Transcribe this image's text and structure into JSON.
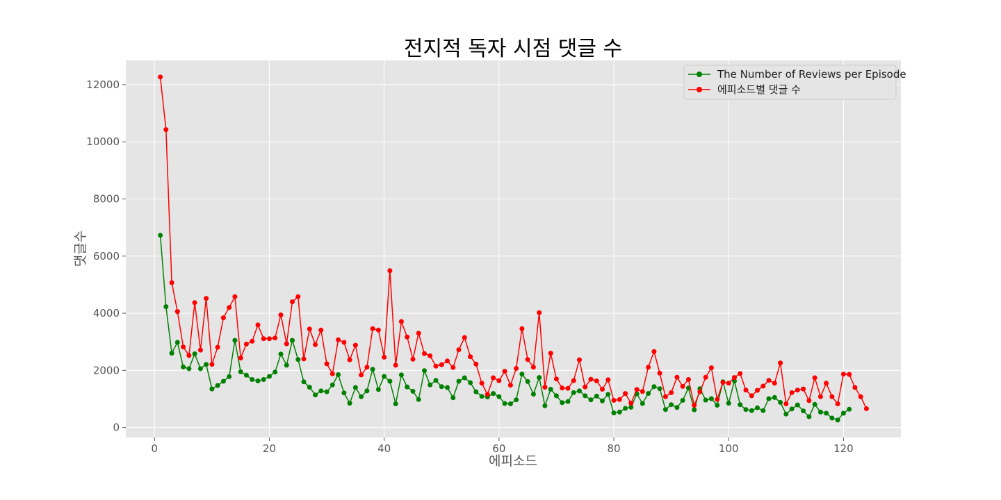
{
  "chart_data": {
    "type": "line",
    "title": "전지적 독자 시점 댓글 수",
    "xlabel": "에피소드",
    "ylabel": "댓글수",
    "xlim": [
      -5,
      130
    ],
    "ylim": [
      -350,
      12850
    ],
    "xticks": [
      0,
      20,
      40,
      60,
      80,
      100,
      120
    ],
    "yticks": [
      0,
      2000,
      4000,
      6000,
      8000,
      10000,
      12000
    ],
    "grid": true,
    "legend_position": "top-right",
    "colors": {
      "plot_bg": "#e5e5e5",
      "grid": "#ffffff"
    },
    "series": [
      {
        "name": "The Number of Reviews per Episode",
        "color": "#008000",
        "x": [
          1,
          2,
          3,
          4,
          5,
          6,
          7,
          8,
          9,
          10,
          11,
          12,
          13,
          14,
          15,
          16,
          17,
          18,
          19,
          20,
          21,
          22,
          23,
          24,
          25,
          26,
          27,
          28,
          29,
          30,
          31,
          32,
          33,
          34,
          35,
          36,
          37,
          38,
          39,
          40,
          41,
          42,
          43,
          44,
          45,
          46,
          47,
          48,
          49,
          50,
          51,
          52,
          53,
          54,
          55,
          56,
          57,
          58,
          59,
          60,
          61,
          62,
          63,
          64,
          65,
          66,
          67,
          68,
          69,
          70,
          71,
          72,
          73,
          74,
          75,
          76,
          77,
          78,
          79,
          80,
          81,
          82,
          83,
          84,
          85,
          86,
          87,
          88,
          89,
          90,
          91,
          92,
          93,
          94,
          95,
          96,
          97,
          98,
          99,
          100,
          101,
          102,
          103,
          104,
          105,
          106,
          107,
          108,
          109,
          110,
          111,
          112,
          113,
          114,
          115,
          116,
          117,
          118,
          119,
          120,
          121
        ],
        "values": [
          6730,
          4230,
          2600,
          2980,
          2120,
          2060,
          2580,
          2060,
          2210,
          1350,
          1470,
          1620,
          1780,
          3050,
          1950,
          1830,
          1680,
          1630,
          1680,
          1790,
          1940,
          2570,
          2180,
          3050,
          2380,
          1600,
          1410,
          1140,
          1280,
          1250,
          1490,
          1850,
          1210,
          850,
          1400,
          1080,
          1280,
          2040,
          1330,
          1790,
          1620,
          830,
          1840,
          1420,
          1270,
          980,
          1990,
          1490,
          1650,
          1430,
          1400,
          1040,
          1620,
          1740,
          1570,
          1250,
          1090,
          1070,
          1190,
          1080,
          840,
          830,
          970,
          1870,
          1610,
          1170,
          1750,
          760,
          1340,
          1110,
          870,
          910,
          1220,
          1280,
          1110,
          970,
          1100,
          930,
          1160,
          510,
          540,
          670,
          710,
          1180,
          840,
          1190,
          1430,
          1360,
          630,
          800,
          700,
          950,
          1380,
          620,
          1360,
          960,
          1010,
          780,
          1600,
          850,
          1630,
          800,
          630,
          590,
          690,
          590,
          1010,
          1050,
          880,
          470,
          650,
          790,
          580,
          380,
          810,
          540,
          500,
          330,
          260,
          500,
          640
        ]
      },
      {
        "name": "에피소드별 댓글 수",
        "color": "#ff0000",
        "x": [
          1,
          2,
          3,
          4,
          5,
          6,
          7,
          8,
          9,
          10,
          11,
          12,
          13,
          14,
          15,
          16,
          17,
          18,
          19,
          20,
          21,
          22,
          23,
          24,
          25,
          26,
          27,
          28,
          29,
          30,
          31,
          32,
          33,
          34,
          35,
          36,
          37,
          38,
          39,
          40,
          41,
          42,
          43,
          44,
          45,
          46,
          47,
          48,
          49,
          50,
          51,
          52,
          53,
          54,
          55,
          56,
          57,
          58,
          59,
          60,
          61,
          62,
          63,
          64,
          65,
          66,
          67,
          68,
          69,
          70,
          71,
          72,
          73,
          74,
          75,
          76,
          77,
          78,
          79,
          80,
          81,
          82,
          83,
          84,
          85,
          86,
          87,
          88,
          89,
          90,
          91,
          92,
          93,
          94,
          95,
          96,
          97,
          98,
          99,
          100,
          101,
          102,
          103,
          104,
          105,
          106,
          107,
          108,
          109,
          110,
          111,
          112,
          113,
          114,
          115,
          116,
          117,
          118,
          119,
          120,
          121,
          122,
          123,
          124
        ],
        "values": [
          12270,
          10430,
          5070,
          4060,
          2820,
          2520,
          4370,
          2710,
          4520,
          2210,
          2810,
          3840,
          4200,
          4580,
          2430,
          2920,
          3020,
          3590,
          3110,
          3110,
          3130,
          3940,
          2930,
          4400,
          4580,
          2400,
          3450,
          2900,
          3410,
          2230,
          1880,
          3070,
          2980,
          2370,
          2880,
          1840,
          2110,
          3460,
          3410,
          2460,
          5490,
          2180,
          3710,
          3170,
          2390,
          3300,
          2590,
          2510,
          2150,
          2200,
          2330,
          2100,
          2720,
          3150,
          2480,
          2220,
          1550,
          1160,
          1740,
          1640,
          1970,
          1480,
          2070,
          3460,
          2380,
          2110,
          4020,
          1410,
          2600,
          1700,
          1380,
          1370,
          1640,
          2370,
          1420,
          1690,
          1630,
          1340,
          1670,
          950,
          980,
          1190,
          850,
          1330,
          1260,
          2110,
          2660,
          1900,
          1080,
          1220,
          1760,
          1440,
          1680,
          780,
          1250,
          1760,
          2090,
          980,
          1580,
          1550,
          1750,
          1890,
          1310,
          1110,
          1300,
          1450,
          1650,
          1550,
          2260,
          830,
          1220,
          1310,
          1350,
          940,
          1740,
          1080,
          1550,
          1080,
          830,
          1870,
          1860,
          1400,
          1080,
          660
        ]
      }
    ]
  }
}
